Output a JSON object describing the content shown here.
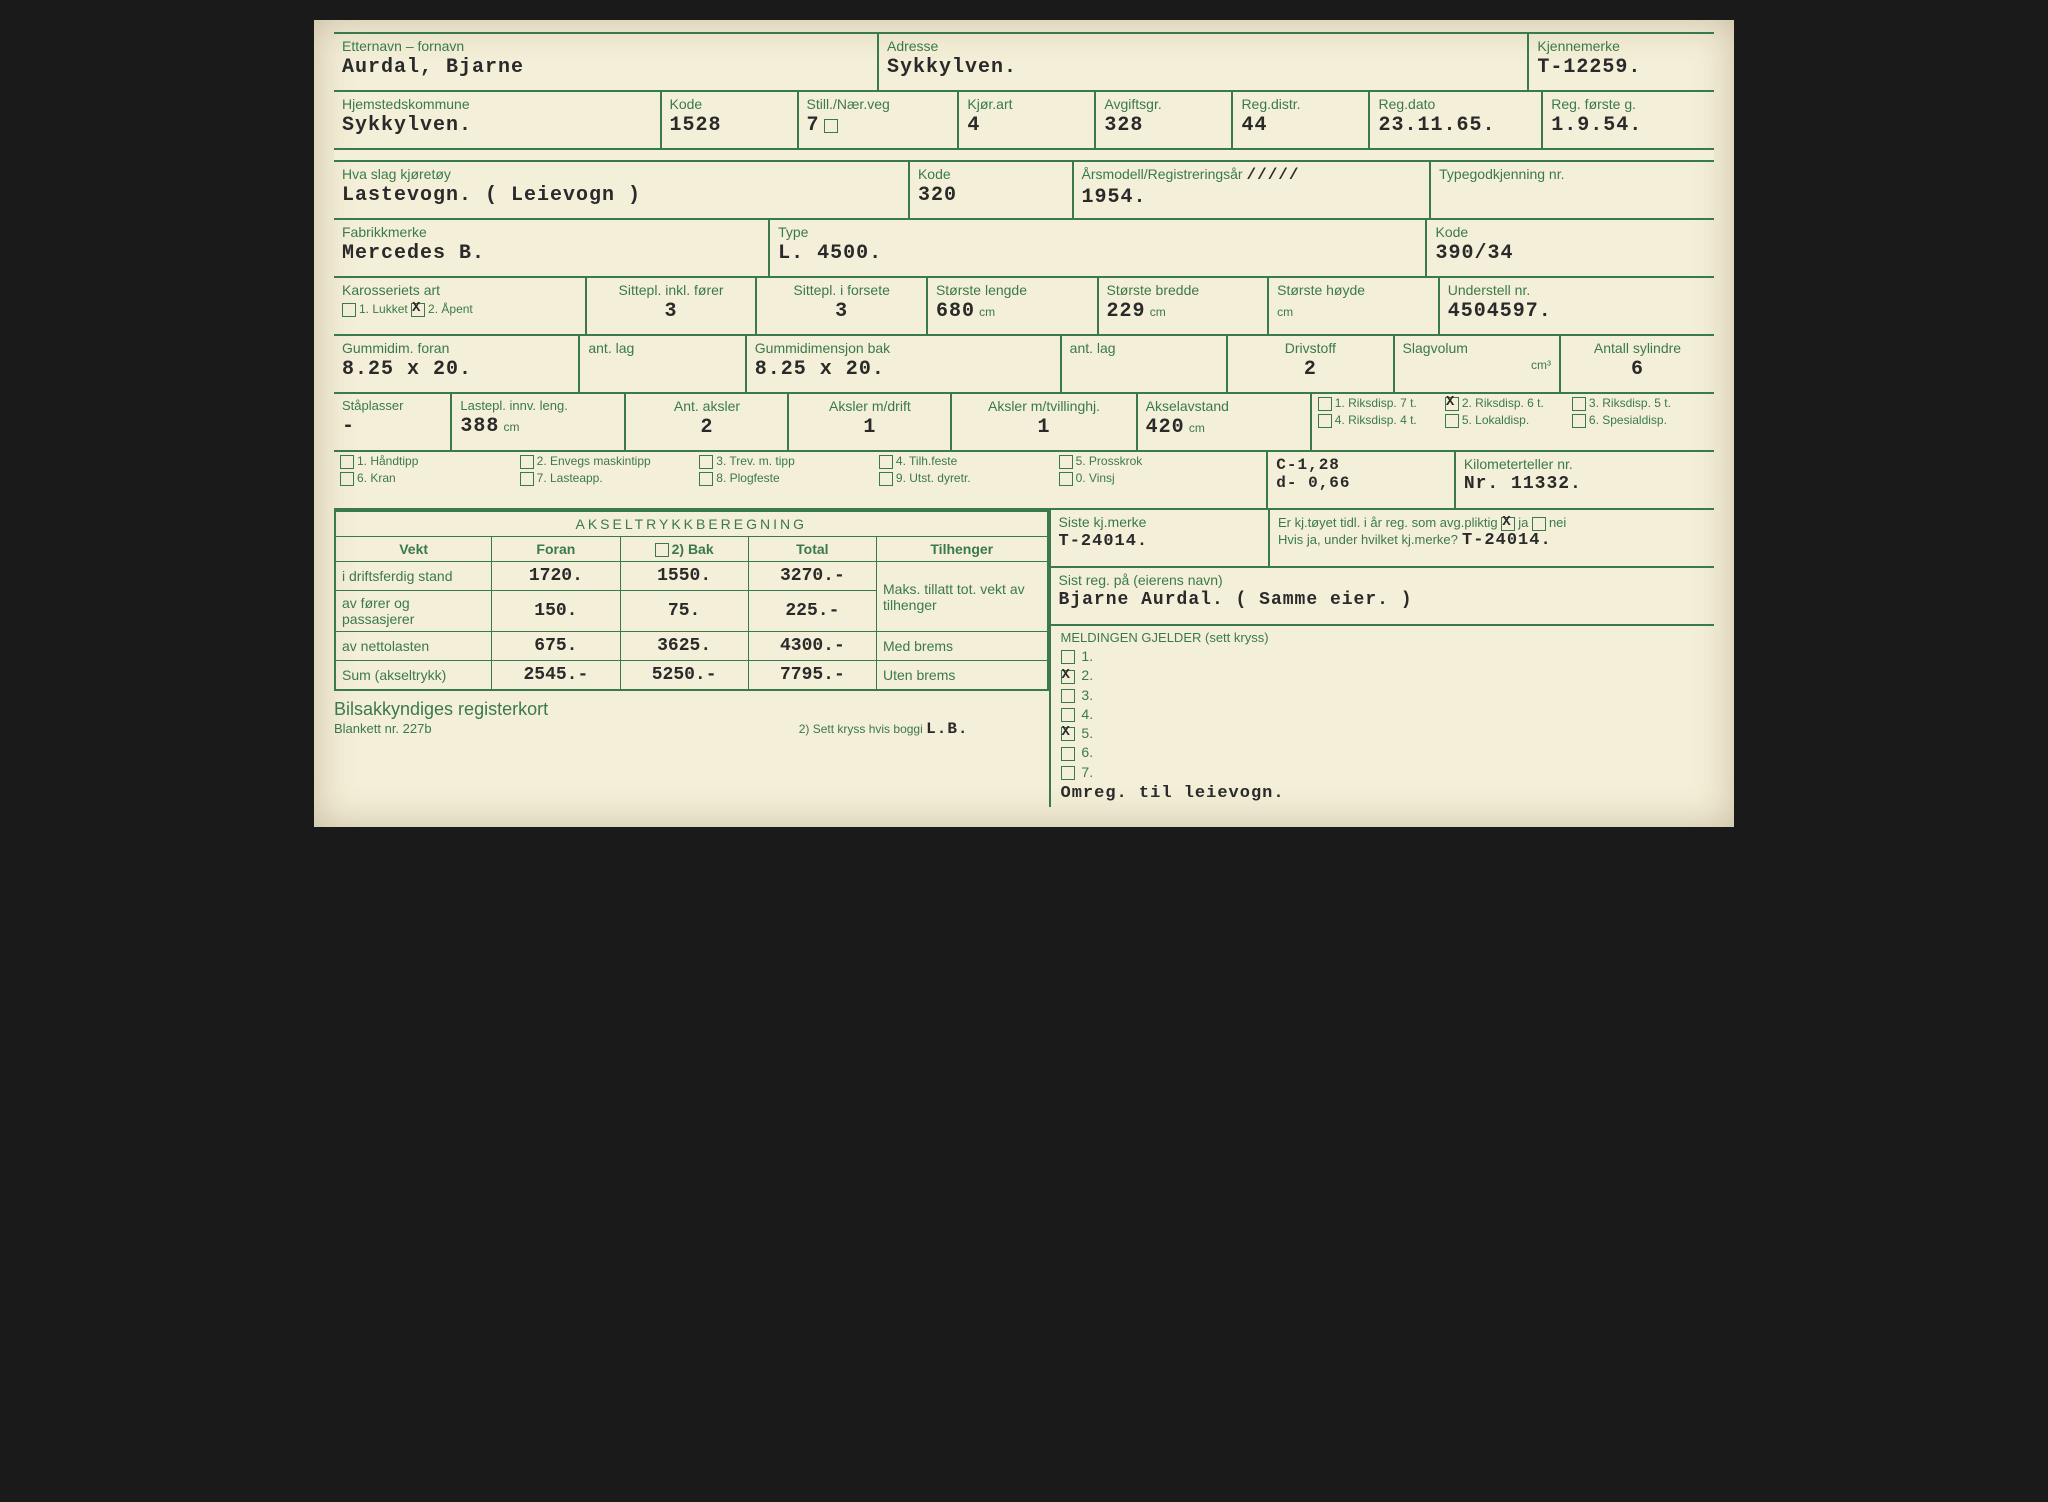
{
  "colors": {
    "form": "#3a7a4a",
    "typed": "#2a2a2a",
    "paper": "#f4efd8"
  },
  "row1": {
    "name_label": "Etternavn – fornavn",
    "name": "Aurdal, Bjarne",
    "addr_label": "Adresse",
    "addr": "Sykkylven.",
    "plate_label": "Kjennemerke",
    "plate": "T-12259."
  },
  "row2": {
    "kommune_label": "Hjemstedskommune",
    "kommune": "Sykkylven.",
    "kode_label": "Kode",
    "kode": "1528",
    "still_label": "Still./Nær.veg",
    "still": "7",
    "kjor_label": "Kjør.art",
    "kjor": "4",
    "avg_label": "Avgiftsgr.",
    "avg": "328",
    "regd_label": "Reg.distr.",
    "regd": "44",
    "regdato_label": "Reg.dato",
    "regdato": "23.11.65.",
    "regfg_label": "Reg. første g.",
    "regfg": "1.9.54."
  },
  "row3": {
    "slag_label": "Hva slag kjøretøy",
    "slag": "Lastevogn. ( Leievogn )",
    "kode_label": "Kode",
    "kode": "320",
    "ars_label": "Årsmodell/Registreringsår",
    "ars": "1954.",
    "typeg_label": "Typegodkjenning nr.",
    "typeg": ""
  },
  "row4": {
    "fabr_label": "Fabrikkmerke",
    "fabr": "Mercedes B.",
    "type_label": "Type",
    "type": "L. 4500.",
    "kode_label": "Kode",
    "kode": "390/34"
  },
  "row5": {
    "kar_label": "Karosseriets art",
    "kar1": "1. Lukket",
    "kar2": "2. Åpent",
    "sittf_label": "Sittepl. inkl. fører",
    "sittf": "3",
    "sittfs_label": "Sittepl. i forsete",
    "sittfs": "3",
    "len_label": "Største lengde",
    "len": "680",
    "bre_label": "Største bredde",
    "bre": "229",
    "hoy_label": "Største høyde",
    "hoy": "",
    "und_label": "Understell nr.",
    "und": "4504597."
  },
  "row6": {
    "gf_label": "Gummidim. foran",
    "gf": "8.25 x 20.",
    "al1_label": "ant. lag",
    "al1": "",
    "gb_label": "Gummidimensjon bak",
    "gb": "8.25 x 20.",
    "al2_label": "ant. lag",
    "al2": "",
    "driv_label": "Drivstoff",
    "driv": "2",
    "slag_label": "Slagvolum",
    "slag": "",
    "syl_label": "Antall sylindre",
    "syl": "6"
  },
  "row7": {
    "sta_label": "Ståplasser",
    "sta": "-",
    "lpl_label": "Lastepl. innv. leng.",
    "lpl": "388",
    "aks_label": "Ant. aksler",
    "aks": "2",
    "amd_label": "Aksler m/drift",
    "amd": "1",
    "amt_label": "Aksler m/tvillinghj.",
    "amt": "1",
    "aav_label": "Akselavstand",
    "aav": "420",
    "riks": [
      "1. Riksdisp. 7 t.",
      "2. Riksdisp. 6 t.",
      "3. Riksdisp. 5 t.",
      "4. Riksdisp. 4 t.",
      "5. Lokaldisp.",
      "6. Spesialdisp."
    ],
    "riks_checked": 1
  },
  "row8": {
    "opts": [
      "1. Håndtipp",
      "2. Envegs maskintipp",
      "3. Trev. m. tipp",
      "4. Tilh.feste",
      "5. Prosskrok",
      "6. Kran",
      "7. Lasteapp.",
      "8. Plogfeste",
      "9. Utst. dyretr.",
      "0. Vinsj"
    ],
    "c": "C-1,28",
    "d": "d- 0,66",
    "km_label": "Kilometerteller nr.",
    "km": "Nr. 11332."
  },
  "axle": {
    "title": "AKSELTRYKKBEREGNING",
    "cols": [
      "Vekt",
      "Foran",
      "2) Bak",
      "Total",
      "Tilhenger"
    ],
    "rows": [
      {
        "l": "i driftsferdig stand",
        "f": "1720.",
        "b": "1550.",
        "t": "3270.-"
      },
      {
        "l": "av fører og passasjerer",
        "f": "150.",
        "b": "75.",
        "t": "225.-"
      },
      {
        "l": "av nettolasten",
        "f": "675.",
        "b": "3625.",
        "t": "4300.-"
      },
      {
        "l": "Sum (akseltrykk)",
        "f": "2545.-",
        "b": "5250.-",
        "t": "7795.-"
      }
    ],
    "tilh1": "Maks. tillatt tot. vekt av tilhenger",
    "tilh2": "Med brems",
    "tilh3": "Uten brems"
  },
  "right": {
    "siste_label": "Siste kj.merke",
    "siste": "T-24014.",
    "tidl_label": "Er kj.tøyet tidl. i år reg. som avg.pliktig",
    "ja": "ja",
    "nei": "nei",
    "hvis_label": "Hvis ja, under hvilket kj.merke?",
    "hvis": "T-24014.",
    "sist_label": "Sist reg. på (eierens navn)",
    "sist": "Bjarne Aurdal. ( Samme eier. )",
    "meld_label": "MELDINGEN GJELDER (sett kryss)",
    "meld": [
      "1.",
      "2.",
      "3.",
      "4.",
      "5.",
      "6.",
      "7."
    ],
    "meld_checked": [
      2,
      5
    ],
    "omreg": "Omreg. til leievogn."
  },
  "footer": {
    "title": "Bilsakkyndiges registerkort",
    "sub": "Blankett nr. 227b",
    "note": "2) Sett kryss hvis boggi",
    "initials": "L.B."
  }
}
